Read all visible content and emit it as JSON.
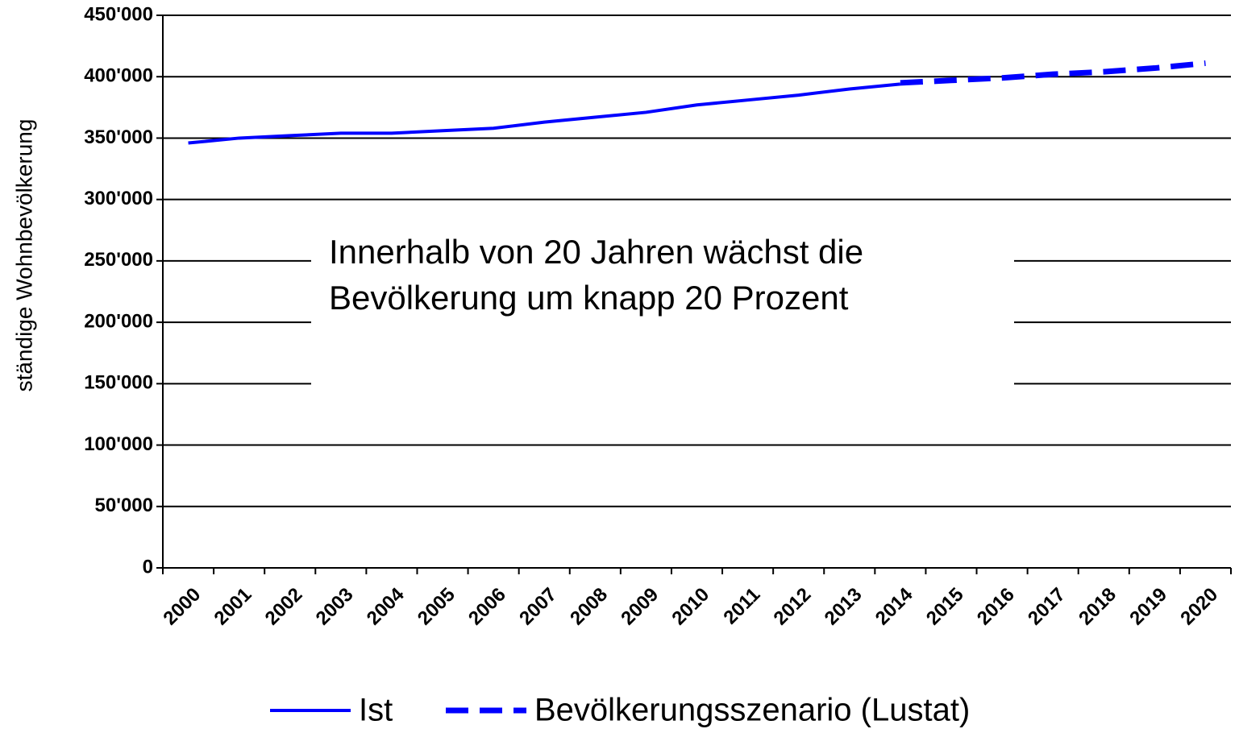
{
  "chart_data": {
    "type": "line",
    "ylabel": "ständige Wohnbevölkerung",
    "annotation": [
      "Innerhalb von 20 Jahren wächst die",
      "Bevölkerung um knapp 20 Prozent"
    ],
    "categories": [
      "2000",
      "2001",
      "2002",
      "2003",
      "2004",
      "2005",
      "2006",
      "2007",
      "2008",
      "2009",
      "2010",
      "2011",
      "2012",
      "2013",
      "2014",
      "2015",
      "2016",
      "2017",
      "2018",
      "2019",
      "2020"
    ],
    "series": [
      {
        "name": "Ist",
        "color": "#0000ff",
        "dash": false,
        "values": [
          346000,
          350000,
          352000,
          354000,
          354000,
          356000,
          358000,
          363000,
          367000,
          371000,
          377000,
          381000,
          385000,
          390000,
          394000,
          null,
          null,
          null,
          null,
          null,
          null
        ]
      },
      {
        "name": "Bevölkerungsszenario (Lustat)",
        "color": "#0000ff",
        "dash": true,
        "values": [
          null,
          null,
          null,
          null,
          null,
          null,
          null,
          null,
          null,
          null,
          null,
          null,
          null,
          null,
          395000,
          397000,
          399000,
          402000,
          404000,
          407000,
          411000
        ]
      }
    ],
    "ylim": [
      0,
      450000
    ],
    "yticks": [
      0,
      {
        "value": 50000,
        "label": "50'000"
      },
      {
        "value": 100000,
        "label": "100'000"
      },
      {
        "value": 150000,
        "label": "150'000"
      },
      {
        "value": 200000,
        "label": "200'000"
      },
      {
        "value": 250000,
        "label": "250'000"
      },
      {
        "value": 300000,
        "label": "300'000"
      },
      {
        "value": 350000,
        "label": "350'000"
      },
      {
        "value": 400000,
        "label": "400'000"
      },
      {
        "value": 450000,
        "label": "450'000"
      }
    ],
    "grid": true,
    "legend": "bottom"
  }
}
